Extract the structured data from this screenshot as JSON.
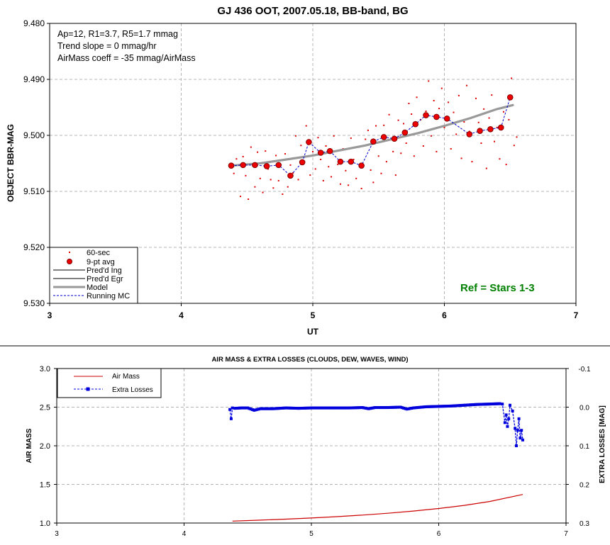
{
  "chart_data": [
    {
      "type": "scatter",
      "title": "GJ 436 OOT, 2007.05.18, BB-band, BG",
      "xlabel": "UT",
      "ylabel": "OBJECT BBR-MAG",
      "xlim": [
        3,
        7
      ],
      "ylim": [
        9.53,
        9.48
      ],
      "y_inverted": true,
      "x_ticks": [
        "3",
        "4",
        "5",
        "6",
        "7"
      ],
      "y_ticks": [
        "9.480",
        "9.490",
        "9.500",
        "9.510",
        "9.520",
        "9.530"
      ],
      "info_lines": [
        "Ap=12, R1=3.7, R5=1.7 mmag",
        "Trend slope = 0 mmag/hr",
        "AirMass coeff = -35 mmag/AirMass"
      ],
      "annotation": "Ref = Stars 1-3",
      "legend": [
        "60-sec",
        "9-pt avg",
        "Pred'd Ing",
        "Pred'd Egr",
        "Model",
        "Running MC"
      ],
      "legend_position": "bottom-left",
      "grid": true,
      "colors": {
        "raw": "#dd0000",
        "avg": "#ee0000",
        "model": "#999999",
        "running": "#0000cc",
        "annotation": "#008000"
      },
      "series": [
        {
          "name": "9-pt avg",
          "x": [
            4.38,
            4.47,
            4.56,
            4.65,
            4.74,
            4.83,
            4.92,
            4.97,
            5.06,
            5.13,
            5.21,
            5.29,
            5.37,
            5.46,
            5.54,
            5.62,
            5.7,
            5.78,
            5.86,
            5.94,
            6.02,
            6.19,
            6.27,
            6.35,
            6.43,
            6.5
          ],
          "y": [
            9.5054,
            9.5053,
            9.5053,
            9.5055,
            9.5053,
            9.5072,
            9.5048,
            9.5012,
            9.5031,
            9.5028,
            9.5047,
            9.5047,
            9.5054,
            9.5011,
            9.5003,
            9.5006,
            9.4995,
            9.498,
            9.4964,
            9.4967,
            9.497,
            9.4998,
            9.4992,
            9.4989,
            9.4986,
            9.4932
          ]
        },
        {
          "name": "Running MC",
          "x": [
            4.38,
            4.47,
            4.56,
            4.65,
            4.74,
            4.83,
            4.92,
            4.97,
            5.06,
            5.13,
            5.21,
            5.29,
            5.37,
            5.46,
            5.54,
            5.62,
            5.7,
            5.78,
            5.86,
            5.94,
            6.02,
            6.19,
            6.27,
            6.35,
            6.43,
            6.5
          ],
          "y": [
            9.5054,
            9.5053,
            9.5053,
            9.5055,
            9.5053,
            9.5072,
            9.5048,
            9.5012,
            9.5031,
            9.5028,
            9.5047,
            9.5047,
            9.5054,
            9.5011,
            9.5003,
            9.5006,
            9.4995,
            9.498,
            9.4964,
            9.4967,
            9.497,
            9.4998,
            9.4992,
            9.4989,
            9.4986,
            9.4932
          ]
        },
        {
          "name": "Model",
          "x": [
            4.38,
            4.6,
            4.8,
            5.0,
            5.2,
            5.4,
            5.6,
            5.8,
            6.0,
            6.2,
            6.4,
            6.52
          ],
          "y": [
            9.5054,
            9.505,
            9.5043,
            9.5036,
            9.5027,
            9.5018,
            9.5007,
            9.4996,
            9.4983,
            9.4969,
            9.4953,
            9.4946
          ]
        },
        {
          "name": "60-sec",
          "x": [
            4.4,
            4.42,
            4.45,
            4.47,
            4.49,
            4.51,
            4.53,
            4.56,
            4.58,
            4.6,
            4.62,
            4.64,
            4.66,
            4.68,
            4.7,
            4.72,
            4.74,
            4.77,
            4.79,
            4.81,
            4.83,
            4.85,
            4.87,
            4.89,
            4.91,
            4.93,
            4.95,
            4.98,
            5.0,
            5.02,
            5.04,
            5.06,
            5.08,
            5.1,
            5.12,
            5.14,
            5.16,
            5.19,
            5.21,
            5.23,
            5.25,
            5.27,
            5.29,
            5.31,
            5.33,
            5.35,
            5.37,
            5.4,
            5.42,
            5.44,
            5.46,
            5.48,
            5.5,
            5.52,
            5.54,
            5.56,
            5.58,
            5.61,
            5.63,
            5.65,
            5.67,
            5.69,
            5.71,
            5.73,
            5.75,
            5.77,
            5.79,
            5.82,
            5.84,
            5.86,
            5.88,
            5.9,
            5.92,
            5.94,
            5.96,
            5.98,
            6.0,
            6.03,
            6.05,
            6.07,
            6.09,
            6.11,
            6.13,
            6.15,
            6.17,
            6.19,
            6.21,
            6.24,
            6.26,
            6.28,
            6.3,
            6.32,
            6.34,
            6.36,
            6.38,
            6.4,
            6.42,
            6.45,
            6.47,
            6.49,
            6.51,
            6.53,
            6.55
          ],
          "y": [
            9.5068,
            9.5042,
            9.5109,
            9.5038,
            9.5072,
            9.5114,
            9.5021,
            9.5092,
            9.503,
            9.5077,
            9.5102,
            9.5028,
            9.506,
            9.5079,
            9.5094,
            9.5036,
            9.5081,
            9.5105,
            9.5033,
            9.5092,
            9.5053,
            9.5067,
            9.5001,
            9.5079,
            9.5018,
            9.505,
            9.4983,
            9.5071,
            9.5029,
            9.506,
            9.5004,
            9.5043,
            9.5081,
            9.5019,
            9.5056,
            9.5074,
            9.5001,
            9.5052,
            9.5087,
            9.5024,
            9.5063,
            9.5089,
            9.5005,
            9.5043,
            9.5077,
            9.5021,
            9.5095,
            9.5007,
            9.4991,
            9.5062,
            9.5084,
            9.4983,
            9.5037,
            9.5068,
            9.4982,
            9.5047,
            9.4963,
            9.5029,
            9.5071,
            9.4973,
            9.5032,
            9.4979,
            9.5014,
            9.4943,
            9.4962,
            9.5037,
            9.4932,
            9.4972,
            9.5019,
            9.4957,
            9.4903,
            9.5001,
            9.4938,
            9.5029,
            9.4952,
            9.4916,
            9.4986,
            9.4941,
            9.5024,
            9.4959,
            9.4998,
            9.4929,
            9.5041,
            9.4976,
            9.4911,
            9.4993,
            9.5047,
            9.4934,
            9.4977,
            9.5014,
            9.4953,
            9.5059,
            9.4969,
            9.4928,
            9.5011,
            9.4986,
            9.5042,
            9.4958,
            9.5052,
            9.4972,
            9.4898,
            9.5018,
            9.5003
          ]
        }
      ]
    },
    {
      "type": "line",
      "title": "AIR MASS & EXTRA LOSSES (CLOUDS, DEW, WAVES, WIND)",
      "xlabel": "",
      "ylabel": "AIR MASS",
      "y2label": "EXTRA LOSSES [MAG]",
      "xlim": [
        3,
        7
      ],
      "ylim": [
        1.0,
        3.0
      ],
      "y2lim": [
        -0.1,
        0.3
      ],
      "y2_inverted": true,
      "x_ticks": [
        "3",
        "4",
        "5",
        "6",
        "7"
      ],
      "y_ticks": [
        "1.0",
        "1.5",
        "2.0",
        "2.5",
        "3.0"
      ],
      "y2_ticks": [
        "-0.1",
        "0.0",
        "0.1",
        "0.2",
        "0.3"
      ],
      "legend": [
        "Air Mass",
        "Extra Losses"
      ],
      "legend_position": "top-left",
      "grid": true,
      "colors": {
        "airmass": "#cc0000",
        "losses": "#0000dd"
      },
      "series": [
        {
          "name": "Air Mass",
          "axis": "left",
          "x": [
            4.38,
            4.6,
            4.8,
            5.0,
            5.2,
            5.4,
            5.6,
            5.8,
            6.0,
            6.2,
            6.4,
            6.66
          ],
          "y": [
            1.025,
            1.038,
            1.05,
            1.065,
            1.083,
            1.103,
            1.127,
            1.155,
            1.188,
            1.228,
            1.279,
            1.37
          ]
        },
        {
          "name": "Extra Losses",
          "axis": "right",
          "x": [
            4.36,
            4.37,
            4.38,
            4.4,
            4.45,
            4.5,
            4.55,
            4.6,
            4.7,
            4.8,
            4.9,
            5.0,
            5.1,
            5.2,
            5.3,
            5.4,
            5.45,
            5.5,
            5.6,
            5.7,
            5.75,
            5.8,
            5.9,
            6.0,
            6.1,
            6.2,
            6.3,
            6.4,
            6.48,
            6.5,
            6.52,
            6.53,
            6.54,
            6.55,
            6.56,
            6.58,
            6.6,
            6.61,
            6.62,
            6.63,
            6.64,
            6.65,
            6.66
          ],
          "y": [
            0.006,
            0.03,
            0.002,
            0.003,
            0.002,
            0.002,
            0.008,
            0.004,
            0.004,
            0.002,
            0.003,
            0.002,
            0.002,
            0.002,
            0.002,
            0.001,
            0.004,
            0.001,
            0.001,
            0.0,
            0.005,
            0.002,
            -0.001,
            -0.002,
            -0.003,
            -0.005,
            -0.007,
            -0.008,
            -0.009,
            -0.008,
            0.04,
            0.02,
            0.05,
            0.03,
            -0.005,
            0.01,
            0.055,
            0.1,
            0.06,
            0.03,
            0.08,
            0.06,
            0.085
          ]
        }
      ]
    }
  ]
}
